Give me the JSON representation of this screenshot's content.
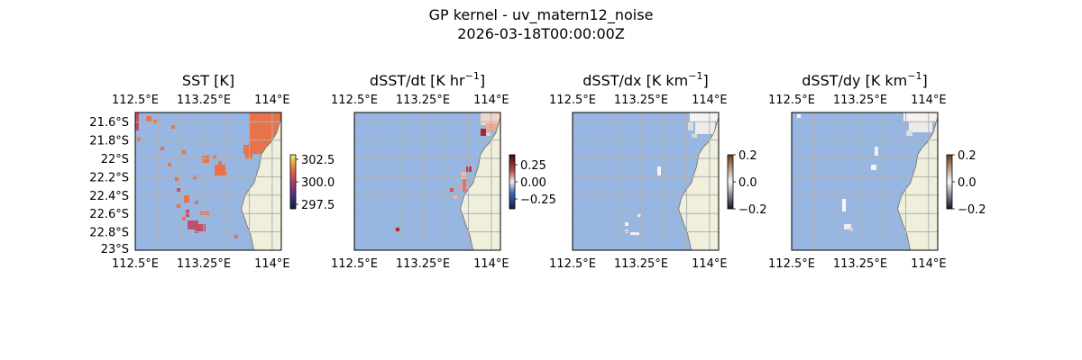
{
  "figure": {
    "title_line1": "GP kernel - uv_matern12_noise",
    "title_line2": "2026-03-18T00:00:00Z"
  },
  "colors": {
    "ocean": "#97b6e1",
    "land": "#efefdb",
    "grid": "#b0b0b0",
    "coast": "#7f7f7f",
    "sst_patch": "#e8734a",
    "sst_low": "#c0506a"
  },
  "chart_data": [
    {
      "type": "heatmap",
      "title": "SST [K]",
      "x_ticks": [
        "112.5°E",
        "113.25°E",
        "114°E"
      ],
      "y_ticks": [
        "21.6°S",
        "21.8°S",
        "22°S",
        "22.2°S",
        "22.4°S",
        "22.6°S",
        "22.8°S",
        "23°S"
      ],
      "xlim": [
        112.5,
        114.1
      ],
      "ylim": [
        -23.0,
        -21.5
      ],
      "colorbar": {
        "ticks": [
          "302.5",
          "300.0",
          "297.5"
        ],
        "range": [
          297.0,
          303.0
        ]
      }
    },
    {
      "type": "heatmap",
      "title": "dSST/dt [K hr",
      "title_sup": "−1",
      "title_end": "]",
      "x_ticks": [
        "112.5°E",
        "113.25°E",
        "114°E"
      ],
      "xlim": [
        112.5,
        114.1
      ],
      "ylim": [
        -23.0,
        -21.5
      ],
      "colorbar": {
        "ticks": [
          "0.25",
          "0.00",
          "−0.25"
        ],
        "range": [
          -0.4,
          0.4
        ]
      }
    },
    {
      "type": "heatmap",
      "title": "dSST/dx [K km",
      "title_sup": "−1",
      "title_end": "]",
      "x_ticks": [
        "112.5°E",
        "113.25°E",
        "114°E"
      ],
      "xlim": [
        112.5,
        114.1
      ],
      "ylim": [
        -23.0,
        -21.5
      ],
      "colorbar": {
        "ticks": [
          "0.2",
          "0.0",
          "−0.2"
        ],
        "range": [
          -0.2,
          0.2
        ]
      }
    },
    {
      "type": "heatmap",
      "title": "dSST/dy [K km",
      "title_sup": "−1",
      "title_end": "]",
      "x_ticks": [
        "112.5°E",
        "113.25°E",
        "114°E"
      ],
      "xlim": [
        112.5,
        114.1
      ],
      "ylim": [
        -23.0,
        -21.5
      ],
      "colorbar": {
        "ticks": [
          "0.2",
          "0.0",
          "−0.2"
        ],
        "range": [
          -0.2,
          0.2
        ]
      }
    }
  ]
}
